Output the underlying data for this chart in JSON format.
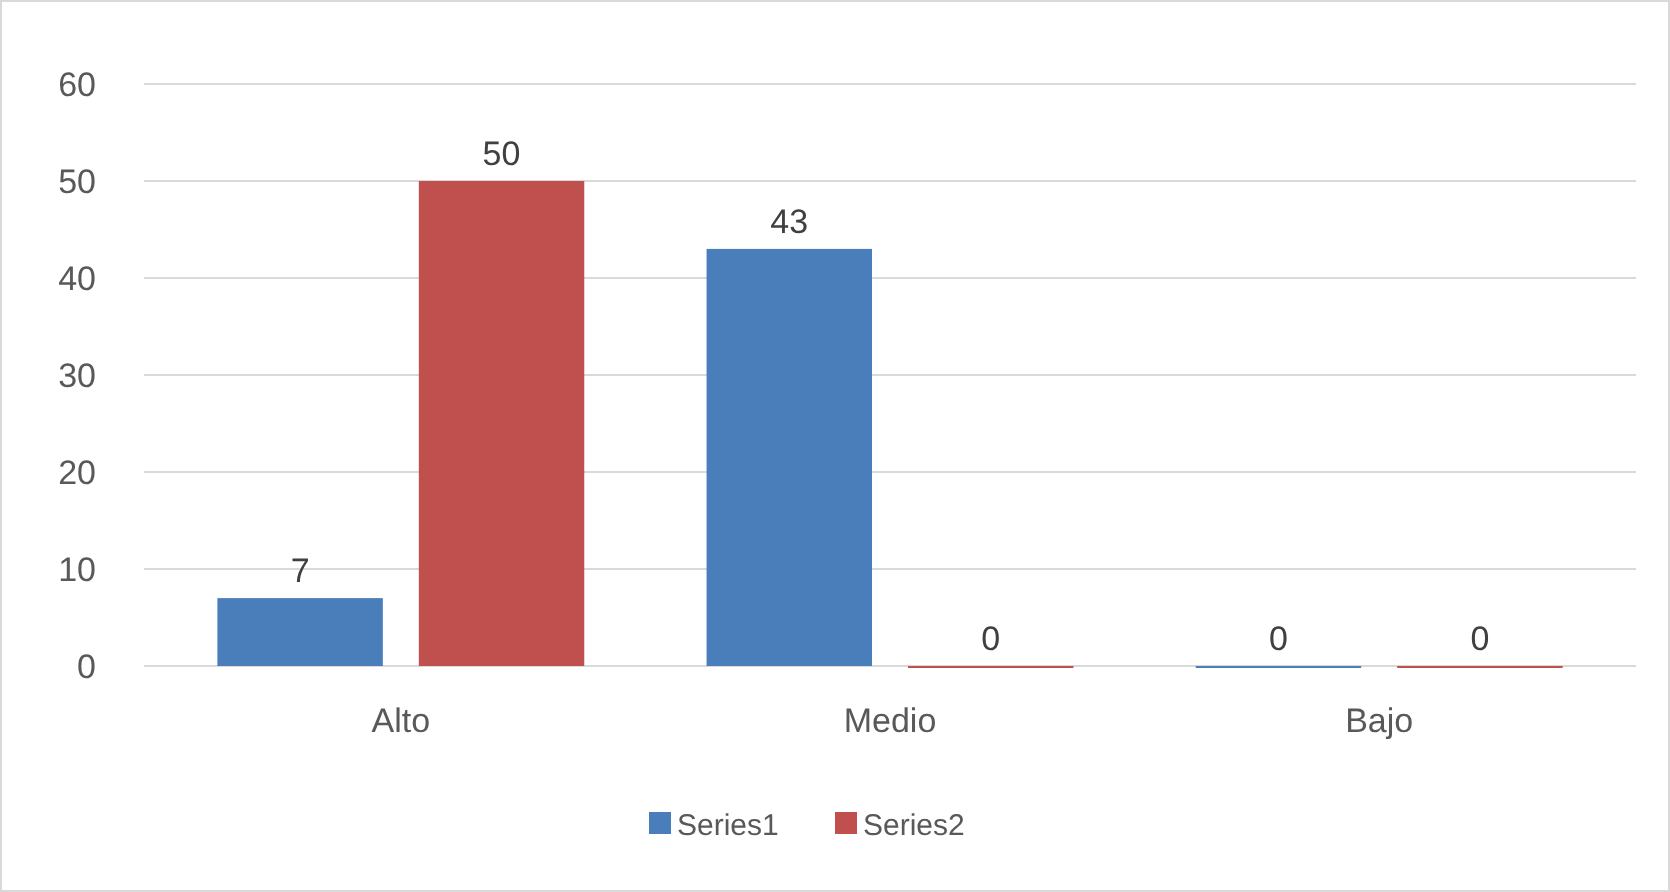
{
  "chart_data": {
    "type": "bar",
    "categories": [
      "Alto",
      "Medio",
      "Bajo"
    ],
    "series": [
      {
        "name": "Series1",
        "color": "#4a7ebb",
        "values": [
          7,
          43,
          0
        ]
      },
      {
        "name": "Series2",
        "color": "#c0504d",
        "values": [
          50,
          0,
          0
        ]
      }
    ],
    "ylim": [
      0,
      60
    ],
    "yticks": [
      0,
      10,
      20,
      30,
      40,
      50,
      60
    ],
    "grid": "y",
    "legend": "bottom",
    "data_labels": true
  }
}
